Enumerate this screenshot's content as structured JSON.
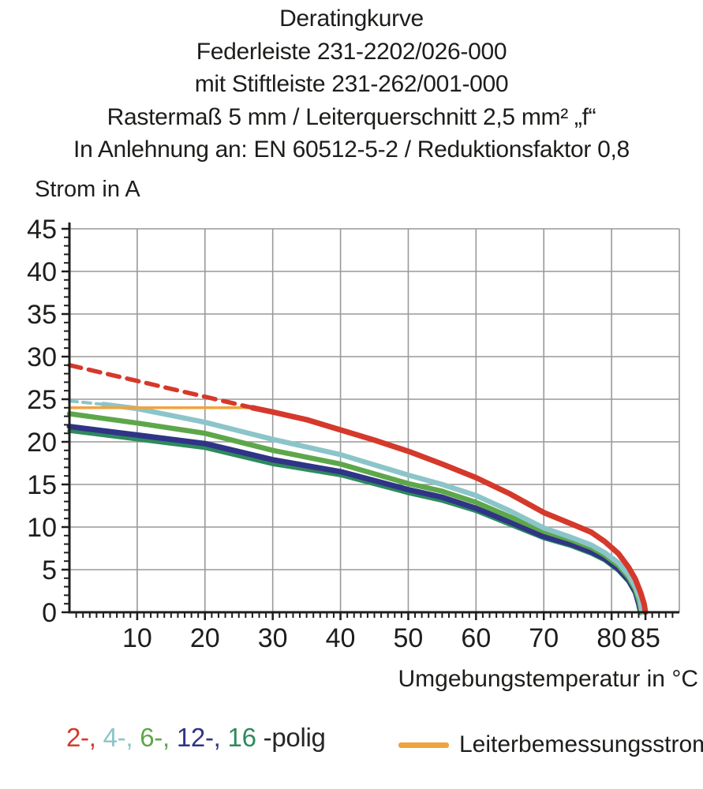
{
  "title_lines": [
    "Deratingkurve",
    "Federleiste 231-2202/026-000",
    "mit Stiftleiste 231-262/001-000",
    "Rastermaß 5 mm / Leiterquerschnitt 2,5 mm² „f“",
    "In Anlehnung an: EN 60512-5-2 / Reduktionsfaktor 0,8"
  ],
  "chart_data": {
    "type": "line",
    "title": "Deratingkurve",
    "xlabel": "Umgebungstemperatur in °C",
    "ylabel": "Strom in A",
    "xlim": [
      0,
      90
    ],
    "ylim": [
      0,
      45
    ],
    "x_major_ticks": [
      10,
      20,
      30,
      40,
      50,
      60,
      70,
      80,
      85
    ],
    "y_major_ticks": [
      0,
      5,
      10,
      15,
      20,
      25,
      30,
      35,
      40,
      45
    ],
    "x_minor_step": 1,
    "y_minor_step": 1,
    "grid": true,
    "grid_color": "#999999",
    "axis_color": "#1d1d1b",
    "series": [
      {
        "name": "16-polig",
        "color": "#2e8a5c",
        "style": "solid",
        "width": 5.5,
        "points": [
          [
            0,
            21.3
          ],
          [
            10,
            20.3
          ],
          [
            20,
            19.3
          ],
          [
            30,
            17.4
          ],
          [
            40,
            16.1
          ],
          [
            50,
            14.0
          ],
          [
            55,
            13.1
          ],
          [
            60,
            11.9
          ],
          [
            65,
            10.3
          ],
          [
            70,
            8.7
          ],
          [
            74,
            7.8
          ],
          [
            77,
            6.9
          ],
          [
            79,
            6.1
          ],
          [
            81,
            4.9
          ],
          [
            82.5,
            3.6
          ],
          [
            83.5,
            2.2
          ],
          [
            84,
            0.8
          ],
          [
            84.2,
            0
          ]
        ]
      },
      {
        "name": "12-polig",
        "color": "#2f3487",
        "style": "solid",
        "width": 7,
        "points": [
          [
            0,
            21.8
          ],
          [
            10,
            20.8
          ],
          [
            20,
            19.8
          ],
          [
            30,
            17.9
          ],
          [
            40,
            16.5
          ],
          [
            50,
            14.4
          ],
          [
            55,
            13.5
          ],
          [
            60,
            12.2
          ],
          [
            65,
            10.6
          ],
          [
            70,
            8.9
          ],
          [
            74,
            8.0
          ],
          [
            77,
            7.1
          ],
          [
            79,
            6.3
          ],
          [
            81,
            5.1
          ],
          [
            82.5,
            3.8
          ],
          [
            83.5,
            2.4
          ],
          [
            84,
            1.0
          ],
          [
            84.3,
            0
          ]
        ]
      },
      {
        "name": "6-polig",
        "color": "#5da74a",
        "style": "solid",
        "width": 6.5,
        "points": [
          [
            0,
            23.3
          ],
          [
            10,
            22.2
          ],
          [
            20,
            21.0
          ],
          [
            30,
            19.0
          ],
          [
            40,
            17.4
          ],
          [
            50,
            15.1
          ],
          [
            55,
            14.2
          ],
          [
            60,
            12.9
          ],
          [
            65,
            11.2
          ],
          [
            70,
            9.5
          ],
          [
            74,
            8.5
          ],
          [
            77,
            7.6
          ],
          [
            79,
            6.7
          ],
          [
            81,
            5.5
          ],
          [
            82.5,
            4.1
          ],
          [
            83.5,
            2.7
          ],
          [
            84.1,
            1.2
          ],
          [
            84.4,
            0
          ]
        ]
      },
      {
        "name": "4-polig",
        "color": "#8bc5c9",
        "style": "solid",
        "width": 6.5,
        "points": [
          [
            5,
            24.4
          ],
          [
            10,
            23.9
          ],
          [
            15,
            23.1
          ],
          [
            20,
            22.3
          ],
          [
            25,
            21.3
          ],
          [
            30,
            20.3
          ],
          [
            35,
            19.4
          ],
          [
            40,
            18.5
          ],
          [
            45,
            17.3
          ],
          [
            50,
            16.1
          ],
          [
            55,
            15.0
          ],
          [
            60,
            13.7
          ],
          [
            65,
            11.9
          ],
          [
            70,
            9.9
          ],
          [
            74,
            8.8
          ],
          [
            77,
            7.9
          ],
          [
            79,
            7.0
          ],
          [
            81,
            5.8
          ],
          [
            82.5,
            4.4
          ],
          [
            83.5,
            3.0
          ],
          [
            84.2,
            1.5
          ],
          [
            84.5,
            0
          ]
        ]
      },
      {
        "name": "4-polig oberhalb Leiterbemessungsstrom",
        "color": "#8bc5c9",
        "style": "dashed",
        "width": 4,
        "dash": "10 7",
        "points": [
          [
            0,
            24.8
          ],
          [
            5,
            24.4
          ]
        ]
      },
      {
        "name": "Leiterbemessungsstrom",
        "color": "#f1a33d",
        "style": "solid",
        "width": 3.5,
        "points": [
          [
            0,
            24
          ],
          [
            27,
            24
          ]
        ]
      },
      {
        "name": "2-polig",
        "color": "#d5392b",
        "style": "solid",
        "width": 7,
        "points": [
          [
            27,
            24
          ],
          [
            30,
            23.5
          ],
          [
            35,
            22.6
          ],
          [
            40,
            21.4
          ],
          [
            45,
            20.2
          ],
          [
            50,
            18.9
          ],
          [
            55,
            17.4
          ],
          [
            60,
            15.8
          ],
          [
            65,
            13.9
          ],
          [
            70,
            11.7
          ],
          [
            74,
            10.4
          ],
          [
            77,
            9.4
          ],
          [
            79,
            8.3
          ],
          [
            81,
            6.9
          ],
          [
            82.5,
            5.3
          ],
          [
            83.5,
            3.9
          ],
          [
            84.3,
            2.3
          ],
          [
            84.8,
            1.0
          ],
          [
            85,
            0
          ]
        ]
      },
      {
        "name": "2-polig oberhalb Leiterbemessungsstrom",
        "color": "#d5392b",
        "style": "dashed",
        "width": 5.5,
        "dash": "15 10",
        "points": [
          [
            0,
            29
          ],
          [
            27,
            24
          ]
        ]
      }
    ]
  },
  "legend": {
    "poles": {
      "items": [
        {
          "label": "2-,",
          "color": "#d5392b"
        },
        {
          "label": "4-,",
          "color": "#8bc5c9"
        },
        {
          "label": "6-,",
          "color": "#5da74a"
        },
        {
          "label": "12-,",
          "color": "#2f3487"
        },
        {
          "label": "16",
          "color": "#2e8a5c"
        }
      ],
      "suffix": "-polig",
      "suffix_color": "#262626"
    },
    "rated": {
      "label": "Leiterbemessungsstrom",
      "color": "#f1a33d"
    }
  }
}
